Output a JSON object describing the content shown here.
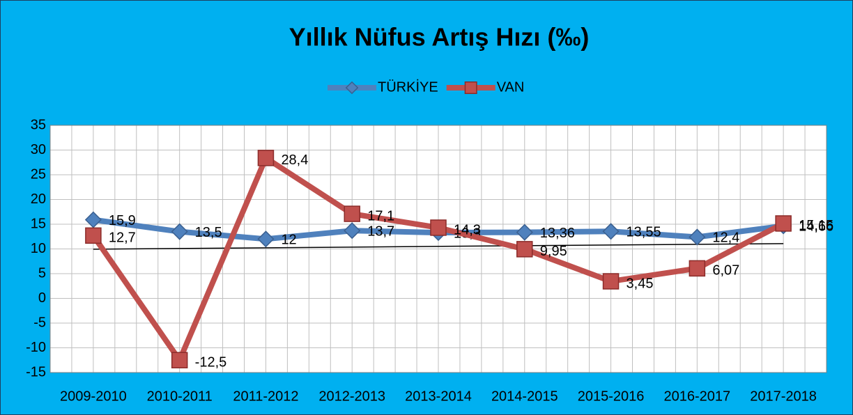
{
  "chart_data": {
    "type": "line",
    "title": "Yıllık Nüfus Artış Hızı (‰)",
    "categories": [
      "2009-2010",
      "2010-2011",
      "2011-2012",
      "2012-2013",
      "2013-2014",
      "2014-2015",
      "2015-2016",
      "2016-2017",
      "2017-2018"
    ],
    "series": [
      {
        "name": "TÜRKİYE",
        "color": "#4f81bd",
        "marker": "diamond",
        "values": [
          15.9,
          13.5,
          12,
          13.7,
          13.3,
          13.36,
          13.55,
          12.4,
          14.66
        ],
        "value_labels": [
          "15,9",
          "13,5",
          "12",
          "13,7",
          "13,3",
          "13,36",
          "13,55",
          "12,4",
          "14,66"
        ]
      },
      {
        "name": "VAN",
        "color": "#c0504d",
        "marker": "square",
        "values": [
          12.7,
          -12.5,
          28.4,
          17.1,
          14.3,
          9.95,
          3.45,
          6.07,
          15.15
        ],
        "value_labels": [
          "12,7",
          "-12,5",
          "28,4",
          "17,1",
          "14,3",
          "9,95",
          "3,45",
          "6,07",
          "15,15"
        ]
      }
    ],
    "ylim": [
      -15,
      35
    ],
    "yticks": [
      -15,
      -10,
      -5,
      0,
      5,
      10,
      15,
      20,
      25,
      30,
      35
    ],
    "grid": true,
    "legend": "top",
    "trendline": true,
    "background": "#00b0f0"
  }
}
